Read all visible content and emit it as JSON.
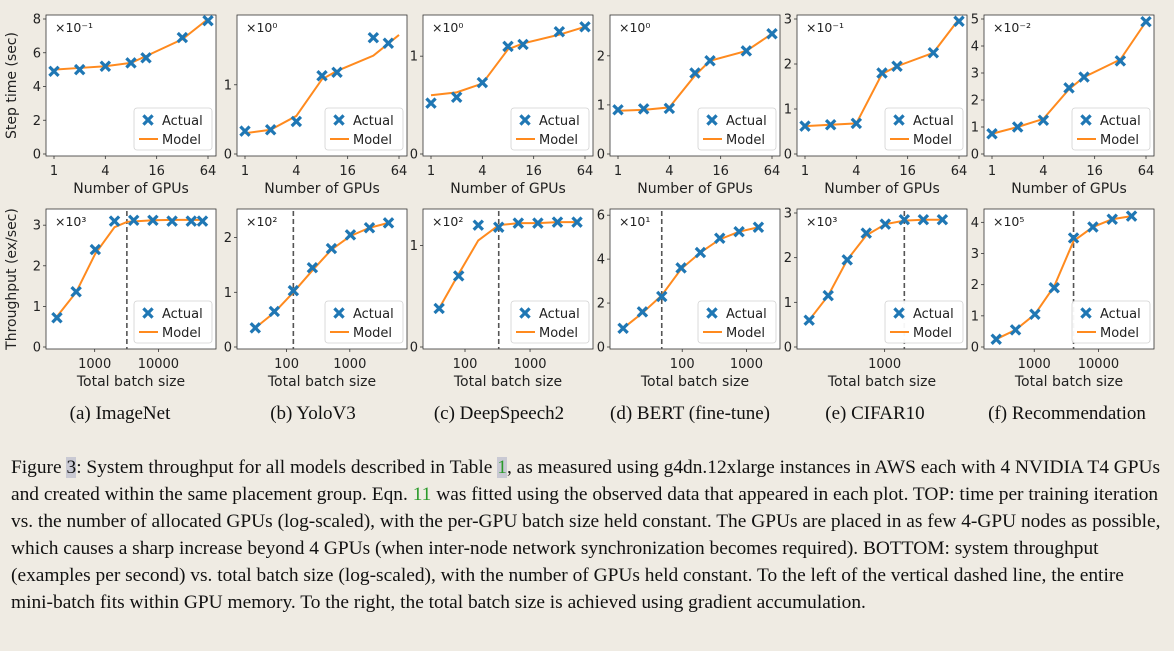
{
  "figure": {
    "top_ylabel": "Step time (sec)",
    "bottom_ylabel": "Throughput (ex/sec)",
    "top_xlabel": "Number of GPUs",
    "bottom_xlabel": "Total batch size",
    "legend_actual": "Actual",
    "legend_model": "Model",
    "colors": {
      "model_line": "#ff8a1e",
      "actual_marker": "#1f77b4",
      "axes": "#333333",
      "grid": "#cccccc"
    }
  },
  "chart_data": [
    {
      "type": "line",
      "panel": "(a) ImageNet",
      "row": "top",
      "title": "",
      "xlabel": "Number of GPUs",
      "ylabel": "Step time (sec)",
      "xscale": "log2",
      "xlim": [
        1,
        64
      ],
      "ylim": [
        0,
        8
      ],
      "xticks": [
        1,
        4,
        16,
        64
      ],
      "xtick_labels": [
        "1",
        "4",
        "16",
        "64"
      ],
      "yticks": [
        0,
        2,
        4,
        6,
        8
      ],
      "ytick_labels": [
        "0",
        "2",
        "4",
        "6",
        "8"
      ],
      "multiplier": "×10⁻¹",
      "series": [
        {
          "name": "Actual",
          "x": [
            1,
            2,
            4,
            8,
            12,
            32,
            64
          ],
          "values": [
            4.9,
            5.0,
            5.2,
            5.4,
            5.7,
            6.9,
            7.9
          ]
        },
        {
          "name": "Model",
          "x": [
            1,
            2,
            4,
            8,
            12,
            32,
            64
          ],
          "values": [
            5.0,
            5.1,
            5.2,
            5.4,
            5.8,
            6.8,
            8.0
          ]
        }
      ],
      "legend": "lower-right"
    },
    {
      "type": "line",
      "panel": "(b) YoloV3",
      "row": "top",
      "title": "",
      "xlabel": "Number of GPUs",
      "ylabel": "",
      "xscale": "log2",
      "xlim": [
        1,
        64
      ],
      "ylim": [
        0,
        1.95
      ],
      "xticks": [
        1,
        4,
        16,
        64
      ],
      "xtick_labels": [
        "1",
        "4",
        "16",
        "64"
      ],
      "yticks": [
        0,
        1
      ],
      "ytick_labels": [
        "0",
        "1"
      ],
      "multiplier": "×10⁰",
      "series": [
        {
          "name": "Actual",
          "x": [
            1,
            2,
            4,
            8,
            12,
            32,
            48
          ],
          "values": [
            0.33,
            0.35,
            0.47,
            1.13,
            1.18,
            1.68,
            1.6
          ]
        },
        {
          "name": "Model",
          "x": [
            1,
            2,
            4,
            8,
            12,
            32,
            64
          ],
          "values": [
            0.3,
            0.35,
            0.55,
            1.08,
            1.2,
            1.42,
            1.72
          ]
        }
      ],
      "legend": "lower-right"
    },
    {
      "type": "line",
      "panel": "(c) DeepSpeech2",
      "row": "top",
      "title": "",
      "xlabel": "Number of GPUs",
      "ylabel": "",
      "xscale": "log2",
      "xlim": [
        1,
        64
      ],
      "ylim": [
        0,
        1.38
      ],
      "xticks": [
        1,
        4,
        16,
        64
      ],
      "xtick_labels": [
        "1",
        "4",
        "16",
        "64"
      ],
      "yticks": [
        0,
        1
      ],
      "ytick_labels": [
        "0",
        "1"
      ],
      "multiplier": "×10⁰",
      "series": [
        {
          "name": "Actual",
          "x": [
            1,
            2,
            4,
            8,
            12,
            32,
            64
          ],
          "values": [
            0.52,
            0.58,
            0.73,
            1.1,
            1.12,
            1.25,
            1.3
          ]
        },
        {
          "name": "Model",
          "x": [
            1,
            2,
            4,
            8,
            12,
            32,
            64
          ],
          "values": [
            0.6,
            0.63,
            0.72,
            1.07,
            1.13,
            1.22,
            1.3
          ]
        }
      ],
      "legend": "lower-right"
    },
    {
      "type": "line",
      "panel": "(d) BERT (fine-tune)",
      "row": "top",
      "title": "",
      "xlabel": "Number of GPUs",
      "ylabel": "",
      "xscale": "log2",
      "xlim": [
        1,
        64
      ],
      "ylim": [
        0,
        2.75
      ],
      "xticks": [
        1,
        4,
        16,
        64
      ],
      "xtick_labels": [
        "1",
        "4",
        "16",
        "64"
      ],
      "yticks": [
        0,
        1,
        2
      ],
      "ytick_labels": [
        "0",
        "1",
        "2"
      ],
      "multiplier": "×10⁰",
      "series": [
        {
          "name": "Actual",
          "x": [
            1,
            2,
            4,
            8,
            12,
            32,
            64
          ],
          "values": [
            0.9,
            0.92,
            0.93,
            1.65,
            1.9,
            2.1,
            2.45
          ]
        },
        {
          "name": "Model",
          "x": [
            1,
            2,
            4,
            8,
            12,
            32,
            64
          ],
          "values": [
            0.88,
            0.9,
            0.95,
            1.6,
            1.9,
            2.1,
            2.45
          ]
        }
      ],
      "legend": "lower-right"
    },
    {
      "type": "line",
      "panel": "(e) CIFAR10",
      "row": "top",
      "title": "",
      "xlabel": "Number of GPUs",
      "ylabel": "",
      "xscale": "log2",
      "xlim": [
        1,
        64
      ],
      "ylim": [
        0,
        3
      ],
      "xticks": [
        1,
        4,
        16,
        64
      ],
      "xtick_labels": [
        "1",
        "4",
        "16",
        "64"
      ],
      "yticks": [
        0,
        1,
        2,
        3
      ],
      "ytick_labels": [
        "0",
        "1",
        "2",
        "3"
      ],
      "multiplier": "×10⁻¹",
      "series": [
        {
          "name": "Actual",
          "x": [
            1,
            2,
            4,
            8,
            12,
            32,
            64
          ],
          "values": [
            0.62,
            0.65,
            0.68,
            1.8,
            1.95,
            2.25,
            2.95
          ]
        },
        {
          "name": "Model",
          "x": [
            1,
            2,
            4,
            8,
            12,
            32,
            64
          ],
          "values": [
            0.62,
            0.65,
            0.68,
            1.78,
            1.95,
            2.25,
            3.0
          ]
        }
      ],
      "legend": "lower-right"
    },
    {
      "type": "line",
      "panel": "(f) Recommendation",
      "row": "top",
      "title": "",
      "xlabel": "Number of GPUs",
      "ylabel": "",
      "xscale": "log2",
      "xlim": [
        1,
        64
      ],
      "ylim": [
        0,
        5
      ],
      "xticks": [
        1,
        4,
        16,
        64
      ],
      "xtick_labels": [
        "1",
        "4",
        "16",
        "64"
      ],
      "yticks": [
        0,
        1,
        2,
        3,
        4,
        5
      ],
      "ytick_labels": [
        "0",
        "1",
        "2",
        "3",
        "4",
        "5"
      ],
      "multiplier": "×10⁻²",
      "series": [
        {
          "name": "Actual",
          "x": [
            1,
            2,
            4,
            8,
            12,
            32,
            64
          ],
          "values": [
            0.75,
            1.0,
            1.25,
            2.45,
            2.85,
            3.45,
            4.9
          ]
        },
        {
          "name": "Model",
          "x": [
            1,
            2,
            4,
            8,
            12,
            32,
            64
          ],
          "values": [
            0.75,
            1.0,
            1.3,
            2.4,
            2.85,
            3.5,
            4.9
          ]
        }
      ],
      "legend": "lower-right"
    },
    {
      "type": "line",
      "panel": "(a) ImageNet",
      "row": "bottom",
      "title": "",
      "xlabel": "Total batch size",
      "ylabel": "Throughput (ex/sec)",
      "xscale": "log10",
      "xlim": [
        230,
        60000
      ],
      "ylim": [
        0,
        3.3
      ],
      "xticks": [
        1000,
        10000
      ],
      "xtick_labels": [
        "1000",
        "10000"
      ],
      "yticks": [
        0,
        1,
        2,
        3
      ],
      "ytick_labels": [
        "0",
        "1",
        "2",
        "3"
      ],
      "multiplier": "×10³",
      "dashed_x": 3200,
      "series": [
        {
          "name": "Actual",
          "x": [
            256,
            512,
            1024,
            2048,
            4096,
            8192,
            16384,
            32768,
            49152
          ],
          "values": [
            0.72,
            1.36,
            2.4,
            3.1,
            3.12,
            3.12,
            3.1,
            3.1,
            3.1
          ]
        },
        {
          "name": "Model",
          "x": [
            256,
            512,
            1024,
            2048,
            3200,
            8192,
            16384,
            32768,
            49152
          ],
          "values": [
            0.75,
            1.35,
            2.3,
            2.95,
            3.08,
            3.12,
            3.13,
            3.13,
            3.13
          ]
        }
      ],
      "legend": "lower-right"
    },
    {
      "type": "line",
      "panel": "(b) YoloV3",
      "row": "bottom",
      "title": "",
      "xlabel": "Total batch size",
      "ylabel": "",
      "xscale": "log10",
      "xlim": [
        22,
        6000
      ],
      "ylim": [
        0,
        2.45
      ],
      "xticks": [
        100,
        1000
      ],
      "xtick_labels": [
        "100",
        "1000"
      ],
      "yticks": [
        0,
        1,
        2
      ],
      "ytick_labels": [
        "0",
        "1",
        "2"
      ],
      "multiplier": "×10²",
      "dashed_x": 128,
      "series": [
        {
          "name": "Actual",
          "x": [
            32,
            64,
            128,
            256,
            512,
            1024,
            2048,
            4096
          ],
          "values": [
            0.35,
            0.65,
            1.03,
            1.45,
            1.8,
            2.05,
            2.18,
            2.27
          ]
        },
        {
          "name": "Model",
          "x": [
            32,
            64,
            128,
            256,
            512,
            1024,
            2048,
            4096
          ],
          "values": [
            0.35,
            0.63,
            1.0,
            1.4,
            1.78,
            2.03,
            2.18,
            2.27
          ]
        }
      ],
      "legend": "lower-right"
    },
    {
      "type": "line",
      "panel": "(c) DeepSpeech2",
      "row": "bottom",
      "title": "",
      "xlabel": "Total batch size",
      "ylabel": "",
      "xscale": "log10",
      "xlim": [
        30,
        7000
      ],
      "ylim": [
        0,
        1.32
      ],
      "xticks": [
        100,
        1000
      ],
      "xtick_labels": [
        "100",
        "1000"
      ],
      "yticks": [
        0,
        1
      ],
      "ytick_labels": [
        "0",
        "1"
      ],
      "multiplier": "×10²",
      "dashed_x": 330,
      "series": [
        {
          "name": "Actual",
          "x": [
            40,
            80,
            160,
            330,
            660,
            1320,
            2640,
            5280
          ],
          "values": [
            0.38,
            0.7,
            1.2,
            1.18,
            1.22,
            1.22,
            1.23,
            1.23
          ]
        },
        {
          "name": "Model",
          "x": [
            40,
            80,
            160,
            330,
            660,
            1320,
            2640,
            5280
          ],
          "values": [
            0.38,
            0.72,
            1.05,
            1.2,
            1.22,
            1.22,
            1.23,
            1.23
          ]
        }
      ],
      "legend": "lower-right"
    },
    {
      "type": "line",
      "panel": "(d) BERT (fine-tune)",
      "row": "bottom",
      "title": "",
      "xlabel": "Total batch size",
      "ylabel": "",
      "xscale": "log10",
      "xlim": [
        10,
        2500
      ],
      "ylim": [
        0,
        6.1
      ],
      "xticks": [
        100,
        1000
      ],
      "xtick_labels": [
        "100",
        "1000"
      ],
      "yticks": [
        0,
        2,
        4,
        6
      ],
      "ytick_labels": [
        "0",
        "2",
        "4",
        "6"
      ],
      "multiplier": "×10¹",
      "dashed_x": 48,
      "series": [
        {
          "name": "Actual",
          "x": [
            12,
            24,
            48,
            96,
            192,
            384,
            768,
            1536
          ],
          "values": [
            0.85,
            1.6,
            2.3,
            3.6,
            4.3,
            4.95,
            5.25,
            5.45
          ]
        },
        {
          "name": "Model",
          "x": [
            12,
            24,
            48,
            96,
            192,
            384,
            768,
            1536
          ],
          "values": [
            0.85,
            1.55,
            2.35,
            3.55,
            4.3,
            4.9,
            5.25,
            5.45
          ]
        }
      ],
      "legend": "lower-right"
    },
    {
      "type": "line",
      "panel": "(e) CIFAR10",
      "row": "bottom",
      "title": "",
      "xlabel": "Total batch size",
      "ylabel": "",
      "xscale": "log10",
      "xlim": [
        55,
        15000
      ],
      "ylim": [
        0,
        3.0
      ],
      "xticks": [
        1000
      ],
      "xtick_labels": [
        "1000"
      ],
      "yticks": [
        0,
        1,
        2,
        3
      ],
      "ytick_labels": [
        "0",
        "1",
        "2",
        "3"
      ],
      "multiplier": "×10³",
      "dashed_x": 2048,
      "series": [
        {
          "name": "Actual",
          "x": [
            64,
            128,
            256,
            512,
            1024,
            2048,
            4096,
            8192
          ],
          "values": [
            0.6,
            1.15,
            1.95,
            2.55,
            2.75,
            2.85,
            2.85,
            2.85
          ]
        },
        {
          "name": "Model",
          "x": [
            64,
            128,
            256,
            512,
            1024,
            2048,
            4096,
            8192
          ],
          "values": [
            0.6,
            1.15,
            1.95,
            2.5,
            2.75,
            2.83,
            2.85,
            2.85
          ]
        }
      ],
      "legend": "lower-right"
    },
    {
      "type": "line",
      "panel": "(f) Recommendation",
      "row": "bottom",
      "title": "",
      "xlabel": "Total batch size",
      "ylabel": "",
      "xscale": "log10",
      "xlim": [
        220,
        55000
      ],
      "ylim": [
        0,
        4.3
      ],
      "xticks": [
        1000,
        10000
      ],
      "xtick_labels": [
        "1000",
        "10000"
      ],
      "yticks": [
        0,
        1,
        2,
        3,
        4
      ],
      "ytick_labels": [
        "0",
        "1",
        "2",
        "3",
        "4"
      ],
      "multiplier": "×10⁵",
      "dashed_x": 4096,
      "series": [
        {
          "name": "Actual",
          "x": [
            256,
            512,
            1024,
            2048,
            4096,
            8192,
            16384,
            32768
          ],
          "values": [
            0.25,
            0.55,
            1.05,
            1.9,
            3.5,
            3.85,
            4.1,
            4.2
          ]
        },
        {
          "name": "Model",
          "x": [
            256,
            512,
            1024,
            2048,
            4096,
            8192,
            16384,
            32768
          ],
          "values": [
            0.25,
            0.55,
            1.05,
            1.95,
            3.4,
            3.85,
            4.1,
            4.2
          ]
        }
      ],
      "legend": "lower-right"
    }
  ],
  "subcaptions": [
    "(a) ImageNet",
    "(b) YoloV3",
    "(c) DeepSpeech2",
    "(d) BERT (fine-tune)",
    "(e) CIFAR10",
    "(f) Recommendation"
  ],
  "caption": {
    "figure_word": "Figure ",
    "figure_num": "3",
    "part1": ": System throughput for all models described in Table ",
    "table_num": "1",
    "part2": ", as measured using g4dn.12xlarge instances in AWS each with 4 NVIDIA T4 GPUs and created within the same placement group. Eqn. ",
    "eqn_num": "11",
    "part3": " was fitted using the observed data that appeared in each plot. TOP: time per training iteration vs. the number of allocated GPUs (log-scaled), with the per-GPU batch size held constant. The GPUs are placed in as few 4-GPU nodes as possible, which causes a sharp increase beyond 4 GPUs (when inter-node network synchronization becomes required). BOTTOM: system throughput (examples per second) vs. total batch size (log-scaled), with the number of GPUs held constant. To the left of the vertical dashed line, the entire mini-batch fits within GPU memory. To the right, the total batch size is achieved using gradient accumulation."
  }
}
